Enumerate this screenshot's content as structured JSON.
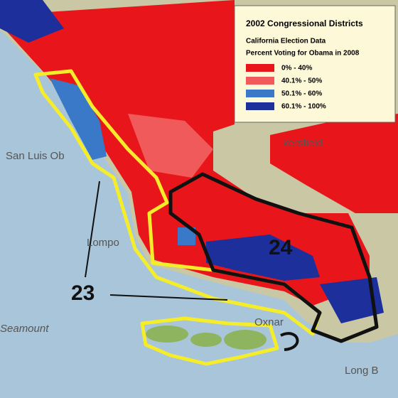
{
  "legend": {
    "title": "2002 Congressional Districts",
    "subtitle": "California Election Data",
    "caption": "Percent Voting for Obama in 2008",
    "items": [
      {
        "label": "0% - 40%",
        "color": "#e8161a"
      },
      {
        "label": "40.1% - 50%",
        "color": "#f05a5a"
      },
      {
        "label": "50.1% - 60%",
        "color": "#3a78c8"
      },
      {
        "label": "60.1% - 100%",
        "color": "#1c2f9a"
      }
    ]
  },
  "places": [
    "San Luis Ob",
    "kersfield",
    "Lompo",
    "Seamount",
    "Oxnar",
    "Long B"
  ],
  "districts": [
    "23",
    "24"
  ]
}
